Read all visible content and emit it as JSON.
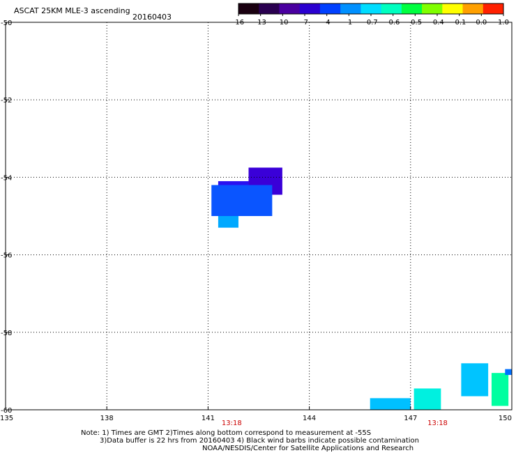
{
  "header": {
    "title": "ASCAT 25KM MLE-3 ascending",
    "date": "20160403"
  },
  "colorbar": {
    "labels": [
      "-16",
      "-13",
      "-10",
      "-7",
      "-4",
      "-1",
      "-0.7",
      "-0.6",
      "-0.5",
      "-0.4",
      "-0.1",
      "0.0",
      "1.0"
    ],
    "colors": [
      "#1a0010",
      "#2a0050",
      "#4a00a0",
      "#2a00d0",
      "#0040ff",
      "#0090ff",
      "#00ddff",
      "#00ffc0",
      "#00ff40",
      "#80ff00",
      "#ffff00",
      "#ffa000",
      "#ff2000"
    ]
  },
  "axes": {
    "x_ticks": [
      "135",
      "138",
      "141",
      "144",
      "147",
      "150"
    ],
    "y_ticks": [
      "-50",
      "-52",
      "-54",
      "-56",
      "-58",
      "-60"
    ],
    "x_range": [
      135,
      150
    ],
    "y_range": [
      -50,
      -60
    ]
  },
  "time_labels": [
    {
      "text": "13:18",
      "lon": 141.7
    },
    {
      "text": "13:18",
      "lon": 147.8
    }
  ],
  "notes": {
    "line1": "Note: 1) Times are GMT 2)Times along bottom correspond to measurement at -55S",
    "line2": "3)Data buffer is 22 hrs from 20160403 4) Black wind barbs indicate possible contamination",
    "line3": "NOAA/NESDIS/Center for Satellite Applications and Research"
  },
  "swaths": [
    {
      "lon": [
        142.2,
        143.2
      ],
      "lat": [
        -53.75,
        -54.45
      ],
      "color": "#3a00d8"
    },
    {
      "lon": [
        141.3,
        142.2
      ],
      "lat": [
        -54.1,
        -54.3
      ],
      "color": "#2a10f0"
    },
    {
      "lon": [
        141.1,
        142.9
      ],
      "lat": [
        -54.2,
        -55.0
      ],
      "color": "#0a55ff"
    },
    {
      "lon": [
        141.3,
        141.9
      ],
      "lat": [
        -55.0,
        -55.3
      ],
      "color": "#00a8ff"
    },
    {
      "lon": [
        145.8,
        147.0
      ],
      "lat": [
        -59.7,
        -60.0
      ],
      "color": "#00c0ff"
    },
    {
      "lon": [
        147.1,
        147.9
      ],
      "lat": [
        -59.45,
        -60.0
      ],
      "color": "#00f0e0"
    },
    {
      "lon": [
        148.5,
        149.3
      ],
      "lat": [
        -58.8,
        -59.65
      ],
      "color": "#00c4ff"
    },
    {
      "lon": [
        149.4,
        149.9
      ],
      "lat": [
        -59.05,
        -59.9
      ],
      "color": "#00ffa0"
    },
    {
      "lon": [
        149.8,
        150.0
      ],
      "lat": [
        -58.95,
        -59.1
      ],
      "color": "#0070ff"
    }
  ]
}
